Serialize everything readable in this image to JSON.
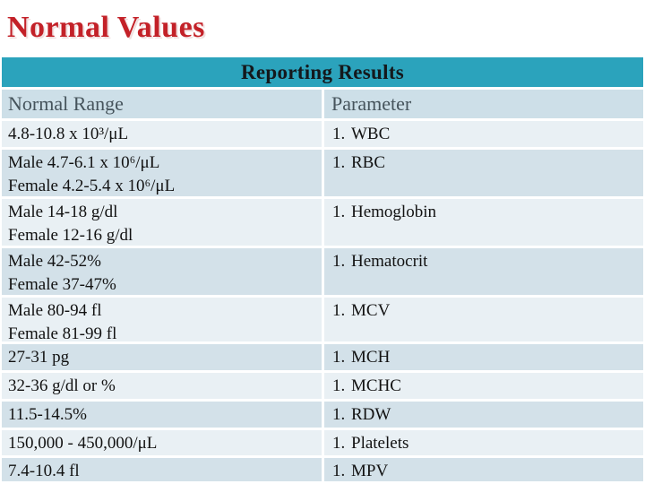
{
  "slide": {
    "title": "Normal Values",
    "banner": "Reporting Results"
  },
  "table": {
    "columns": {
      "range": "Normal Range",
      "parameter": "Parameter"
    },
    "rows": [
      {
        "range_lines": [
          "4.8-10.8 x 10³/μL"
        ],
        "num": "1.",
        "param": "WBC"
      },
      {
        "range_lines": [
          "Male 4.7-6.1 x 10⁶/μL",
          "Female 4.2-5.4 x 10⁶/μL"
        ],
        "num": "1.",
        "param": "RBC"
      },
      {
        "range_lines": [
          "Male 14-18 g/dl",
          "Female 12-16 g/dl"
        ],
        "num": "1.",
        "param": "Hemoglobin"
      },
      {
        "range_lines": [
          "Male 42-52%",
          "Female 37-47%"
        ],
        "num": "1.",
        "param": "Hematocrit"
      },
      {
        "range_lines": [
          "Male 80-94 fl",
          "Female 81-99 fl"
        ],
        "num": "1.",
        "param": "MCV"
      },
      {
        "range_lines": [
          "27-31 pg"
        ],
        "num": "1.",
        "param": "MCH"
      },
      {
        "range_lines": [
          "32-36 g/dl or %"
        ],
        "num": "1.",
        "param": "MCHC"
      },
      {
        "range_lines": [
          "11.5-14.5%"
        ],
        "num": "1.",
        "param": "RDW"
      },
      {
        "range_lines": [
          "150,000 - 450,000/μL"
        ],
        "num": "1.",
        "param": "Platelets"
      },
      {
        "range_lines": [
          "7.4-10.4 fl"
        ],
        "num": "1.",
        "param": "MPV"
      }
    ]
  },
  "colors": {
    "accent_teal": "#2ba3bc",
    "row_light": "#e9f0f4",
    "row_dark": "#d3e1e9",
    "header_bg": "#cddfe8",
    "header_text": "#46545c",
    "title_red": "#c32128",
    "body_text": "#121212"
  }
}
